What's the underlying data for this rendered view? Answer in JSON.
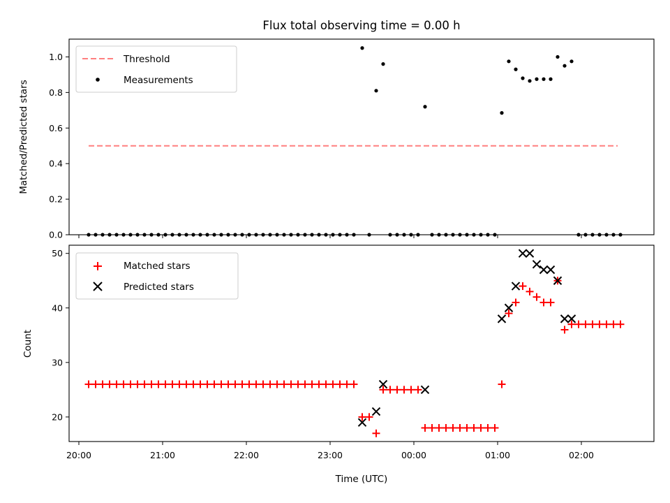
{
  "chart_data": [
    {
      "type": "scatter",
      "title": "Flux total observing time = 0.00 h",
      "xlabel": "",
      "ylabel": "Matched/Predicted stars",
      "ylim": [
        0,
        1.1
      ],
      "yticks": [
        "0.0",
        "0.2",
        "0.4",
        "0.6",
        "0.8",
        "1.0"
      ],
      "xlim": [
        "19:53",
        "02:52"
      ],
      "grid": false,
      "legend": {
        "placement": "upper-left",
        "entries": [
          {
            "label": "Threshold",
            "color": "#ff7f7f",
            "style": "dashed-line"
          },
          {
            "label": "Measurements",
            "color": "#000000",
            "style": "dot"
          }
        ]
      },
      "threshold": {
        "value": 0.5,
        "x_start": "20:07",
        "x_end": "02:26",
        "color": "#ff7f7f"
      },
      "series": [
        {
          "name": "Measurements",
          "color": "#000000",
          "points": [
            [
              "20:07",
              0
            ],
            [
              "20:12",
              0
            ],
            [
              "20:17",
              0
            ],
            [
              "20:22",
              0
            ],
            [
              "20:27",
              0
            ],
            [
              "20:32",
              0
            ],
            [
              "20:37",
              0
            ],
            [
              "20:42",
              0
            ],
            [
              "20:47",
              0
            ],
            [
              "20:52",
              0
            ],
            [
              "20:57",
              0
            ],
            [
              "21:02",
              0
            ],
            [
              "21:07",
              0
            ],
            [
              "21:12",
              0
            ],
            [
              "21:17",
              0
            ],
            [
              "21:22",
              0
            ],
            [
              "21:27",
              0
            ],
            [
              "21:32",
              0
            ],
            [
              "21:37",
              0
            ],
            [
              "21:42",
              0
            ],
            [
              "21:47",
              0
            ],
            [
              "21:52",
              0
            ],
            [
              "21:57",
              0
            ],
            [
              "22:02",
              0
            ],
            [
              "22:07",
              0
            ],
            [
              "22:12",
              0
            ],
            [
              "22:17",
              0
            ],
            [
              "22:22",
              0
            ],
            [
              "22:27",
              0
            ],
            [
              "22:32",
              0
            ],
            [
              "22:37",
              0
            ],
            [
              "22:42",
              0
            ],
            [
              "22:47",
              0
            ],
            [
              "22:52",
              0
            ],
            [
              "22:57",
              0
            ],
            [
              "23:02",
              0
            ],
            [
              "23:07",
              0
            ],
            [
              "23:12",
              0
            ],
            [
              "23:17",
              0
            ],
            [
              "23:23",
              1.05
            ],
            [
              "23:28",
              0
            ],
            [
              "23:33",
              0.81
            ],
            [
              "23:38",
              0.96
            ],
            [
              "23:43",
              0
            ],
            [
              "23:48",
              0
            ],
            [
              "23:53",
              0
            ],
            [
              "23:58",
              0
            ],
            [
              "00:03",
              0
            ],
            [
              "00:08",
              0.72
            ],
            [
              "00:13",
              0
            ],
            [
              "00:18",
              0
            ],
            [
              "00:23",
              0
            ],
            [
              "00:28",
              0
            ],
            [
              "00:33",
              0
            ],
            [
              "00:38",
              0
            ],
            [
              "00:43",
              0
            ],
            [
              "00:48",
              0
            ],
            [
              "00:53",
              0
            ],
            [
              "00:58",
              0
            ],
            [
              "01:03",
              0.685
            ],
            [
              "01:08",
              0.975
            ],
            [
              "01:13",
              0.93
            ],
            [
              "01:18",
              0.88
            ],
            [
              "01:23",
              0.865
            ],
            [
              "01:28",
              0.875
            ],
            [
              "01:33",
              0.875
            ],
            [
              "01:38",
              0.875
            ],
            [
              "01:43",
              1.0
            ],
            [
              "01:48",
              0.95
            ],
            [
              "01:53",
              0.975
            ],
            [
              "01:58",
              0
            ],
            [
              "02:03",
              0
            ],
            [
              "02:08",
              0
            ],
            [
              "02:13",
              0
            ],
            [
              "02:18",
              0
            ],
            [
              "02:23",
              0
            ],
            [
              "02:28",
              0
            ]
          ]
        }
      ]
    },
    {
      "type": "scatter",
      "title": "",
      "xlabel": "Time (UTC)",
      "ylabel": "Count",
      "ylim": [
        15.5,
        51.5
      ],
      "yticks": [
        "20",
        "30",
        "40",
        "50"
      ],
      "xlim": [
        "19:53",
        "02:52"
      ],
      "xticks": [
        "20:00",
        "21:00",
        "22:00",
        "23:00",
        "00:00",
        "01:00",
        "02:00"
      ],
      "grid": false,
      "legend": {
        "placement": "upper-left",
        "entries": [
          {
            "label": "Matched stars",
            "color": "#ff0000",
            "style": "plus"
          },
          {
            "label": "Predicted stars",
            "color": "#000000",
            "style": "cross"
          }
        ]
      },
      "series": [
        {
          "name": "Matched stars",
          "color": "#ff0000",
          "marker": "plus",
          "points": [
            [
              "20:07",
              26
            ],
            [
              "20:12",
              26
            ],
            [
              "20:17",
              26
            ],
            [
              "20:22",
              26
            ],
            [
              "20:27",
              26
            ],
            [
              "20:32",
              26
            ],
            [
              "20:37",
              26
            ],
            [
              "20:42",
              26
            ],
            [
              "20:47",
              26
            ],
            [
              "20:52",
              26
            ],
            [
              "20:57",
              26
            ],
            [
              "21:02",
              26
            ],
            [
              "21:07",
              26
            ],
            [
              "21:12",
              26
            ],
            [
              "21:17",
              26
            ],
            [
              "21:22",
              26
            ],
            [
              "21:27",
              26
            ],
            [
              "21:32",
              26
            ],
            [
              "21:37",
              26
            ],
            [
              "21:42",
              26
            ],
            [
              "21:47",
              26
            ],
            [
              "21:52",
              26
            ],
            [
              "21:57",
              26
            ],
            [
              "22:02",
              26
            ],
            [
              "22:07",
              26
            ],
            [
              "22:12",
              26
            ],
            [
              "22:17",
              26
            ],
            [
              "22:22",
              26
            ],
            [
              "22:27",
              26
            ],
            [
              "22:32",
              26
            ],
            [
              "22:37",
              26
            ],
            [
              "22:42",
              26
            ],
            [
              "22:47",
              26
            ],
            [
              "22:52",
              26
            ],
            [
              "22:57",
              26
            ],
            [
              "23:02",
              26
            ],
            [
              "23:07",
              26
            ],
            [
              "23:12",
              26
            ],
            [
              "23:17",
              26
            ],
            [
              "23:23",
              20
            ],
            [
              "23:28",
              20
            ],
            [
              "23:33",
              17
            ],
            [
              "23:38",
              25
            ],
            [
              "23:43",
              25
            ],
            [
              "23:48",
              25
            ],
            [
              "23:53",
              25
            ],
            [
              "23:58",
              25
            ],
            [
              "00:03",
              25
            ],
            [
              "00:08",
              18
            ],
            [
              "00:13",
              18
            ],
            [
              "00:18",
              18
            ],
            [
              "00:23",
              18
            ],
            [
              "00:28",
              18
            ],
            [
              "00:33",
              18
            ],
            [
              "00:38",
              18
            ],
            [
              "00:43",
              18
            ],
            [
              "00:48",
              18
            ],
            [
              "00:53",
              18
            ],
            [
              "00:58",
              18
            ],
            [
              "01:03",
              26
            ],
            [
              "01:08",
              39
            ],
            [
              "01:13",
              41
            ],
            [
              "01:18",
              44
            ],
            [
              "01:23",
              43
            ],
            [
              "01:28",
              42
            ],
            [
              "01:33",
              41
            ],
            [
              "01:38",
              41
            ],
            [
              "01:43",
              45
            ],
            [
              "01:48",
              36
            ],
            [
              "01:53",
              37
            ],
            [
              "01:58",
              37
            ],
            [
              "02:03",
              37
            ],
            [
              "02:08",
              37
            ],
            [
              "02:13",
              37
            ],
            [
              "02:18",
              37
            ],
            [
              "02:23",
              37
            ],
            [
              "02:28",
              37
            ]
          ]
        },
        {
          "name": "Predicted stars",
          "color": "#000000",
          "marker": "cross",
          "points": [
            [
              "23:23",
              19
            ],
            [
              "23:33",
              21
            ],
            [
              "23:38",
              26
            ],
            [
              "00:08",
              25
            ],
            [
              "01:03",
              38
            ],
            [
              "01:08",
              40
            ],
            [
              "01:13",
              44
            ],
            [
              "01:18",
              50
            ],
            [
              "01:23",
              50
            ],
            [
              "01:28",
              48
            ],
            [
              "01:33",
              47
            ],
            [
              "01:38",
              47
            ],
            [
              "01:43",
              45
            ],
            [
              "01:48",
              38
            ],
            [
              "01:53",
              38
            ]
          ]
        }
      ]
    }
  ]
}
